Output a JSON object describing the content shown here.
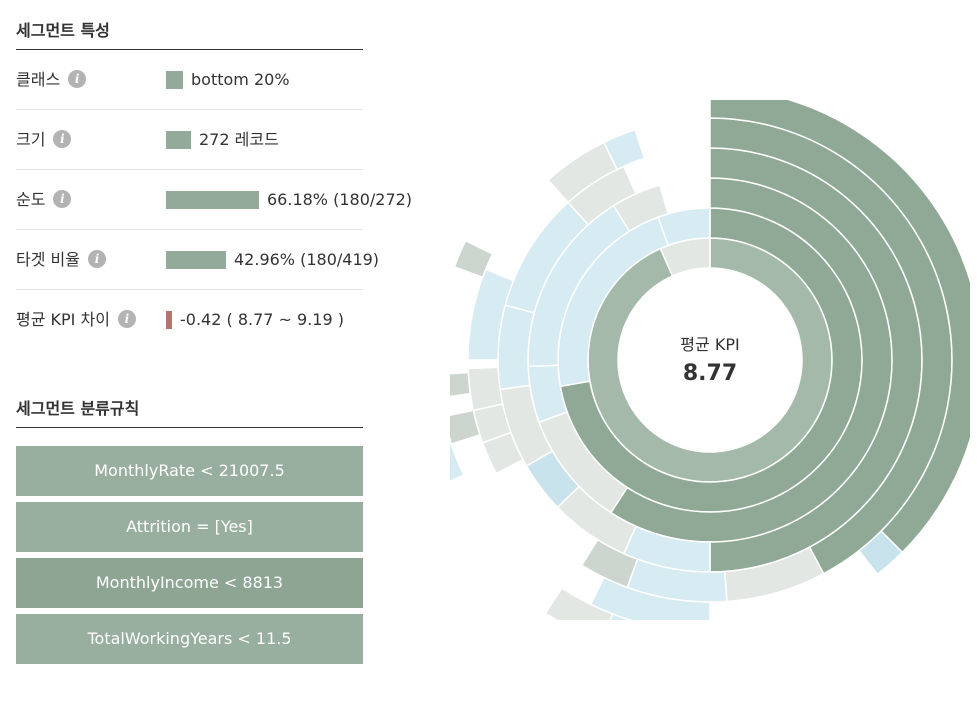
{
  "characteristics": {
    "title": "세그먼트 특성",
    "info_glyph": "i",
    "rows": [
      {
        "label": "클래스",
        "value": "bottom 20%",
        "fill": 0.12,
        "color": "#93aa9b"
      },
      {
        "label": "크기",
        "value": "272 레코드",
        "fill": 0.18,
        "color": "#93aa9b"
      },
      {
        "label": "순도",
        "value": "66.18% (180/272)",
        "fill": 0.6618,
        "color": "#93aa9b"
      },
      {
        "label": "타겟 비율",
        "value": "42.96% (180/419)",
        "fill": 0.4296,
        "color": "#93aa9b"
      },
      {
        "label": "평균 KPI 차이",
        "value": "-0.42 ( 8.77 ~ 9.19 )",
        "fill": 0.04,
        "color": "#b5746c"
      }
    ]
  },
  "rules": {
    "title": "세그먼트 분류규칙",
    "items": [
      {
        "text": "MonthlyRate < 21007.5",
        "color": "#98ae9f"
      },
      {
        "text": "Attrition = [Yes]",
        "color": "#98ae9f"
      },
      {
        "text": "MonthlyIncome < 8813",
        "color": "#8ea594"
      },
      {
        "text": "TotalWorkingYears < 11.5",
        "color": "#98ae9f"
      }
    ]
  },
  "chart_data": {
    "type": "sunburst",
    "center_label": "평균 KPI",
    "center_value": "8.77",
    "colors": {
      "highlight": "#8fa996",
      "highlight_inner": "#a4b9aa",
      "blue": "#d6ebf2",
      "blue_strong": "#c8e3ec",
      "grey": "#e2e7e4",
      "grey_dark": "#cdd5cf"
    },
    "rings": [
      [
        {
          "start": 0,
          "end": 336,
          "color": "highlight_inner"
        },
        {
          "start": 336,
          "end": 360,
          "color": "grey"
        }
      ],
      [
        {
          "start": 0,
          "end": 260,
          "color": "highlight"
        },
        {
          "start": 260,
          "end": 340,
          "color": "blue"
        },
        {
          "start": 340,
          "end": 360,
          "color": "blue"
        }
      ],
      [
        {
          "start": 0,
          "end": 213,
          "color": "highlight"
        },
        {
          "start": 213,
          "end": 250,
          "color": "grey"
        },
        {
          "start": 250,
          "end": 268,
          "color": "blue"
        },
        {
          "start": 268,
          "end": 328,
          "color": "blue"
        },
        {
          "start": 328,
          "end": 344,
          "color": "grey"
        }
      ],
      [
        {
          "start": 0,
          "end": 180,
          "color": "highlight"
        },
        {
          "start": 180,
          "end": 204,
          "color": "blue"
        },
        {
          "start": 204,
          "end": 226,
          "color": "grey"
        },
        {
          "start": 226,
          "end": 240,
          "color": "blue_strong"
        },
        {
          "start": 240,
          "end": 262,
          "color": "grey"
        },
        {
          "start": 262,
          "end": 285,
          "color": "blue"
        },
        {
          "start": 285,
          "end": 318,
          "color": "blue"
        },
        {
          "start": 318,
          "end": 336,
          "color": "grey"
        }
      ],
      [
        {
          "start": 0,
          "end": 152,
          "color": "highlight"
        },
        {
          "start": 152,
          "end": 176,
          "color": "grey"
        },
        {
          "start": 176,
          "end": 200,
          "color": "blue"
        },
        {
          "start": 200,
          "end": 212,
          "color": "grey_dark"
        },
        {
          "start": 242,
          "end": 250,
          "color": "grey"
        },
        {
          "start": 250,
          "end": 258,
          "color": "grey"
        },
        {
          "start": 258,
          "end": 268,
          "color": "grey"
        },
        {
          "start": 270,
          "end": 292,
          "color": "blue"
        },
        {
          "start": 318,
          "end": 334,
          "color": "grey"
        },
        {
          "start": 334,
          "end": 342,
          "color": "blue"
        }
      ],
      [
        {
          "start": 0,
          "end": 135,
          "color": "highlight"
        },
        {
          "start": 135,
          "end": 142,
          "color": "blue_strong"
        },
        {
          "start": 180,
          "end": 206,
          "color": "blue"
        },
        {
          "start": 252,
          "end": 258,
          "color": "grey_dark"
        },
        {
          "start": 262,
          "end": 267,
          "color": "grey_dark"
        },
        {
          "start": 290,
          "end": 296,
          "color": "grey_dark"
        }
      ],
      [
        {
          "start": 180,
          "end": 201,
          "color": "blue"
        },
        {
          "start": 201,
          "end": 213,
          "color": "grey"
        },
        {
          "start": 245,
          "end": 252,
          "color": "blue"
        },
        {
          "start": 252,
          "end": 258,
          "color": "grey_dark"
        }
      ]
    ]
  }
}
